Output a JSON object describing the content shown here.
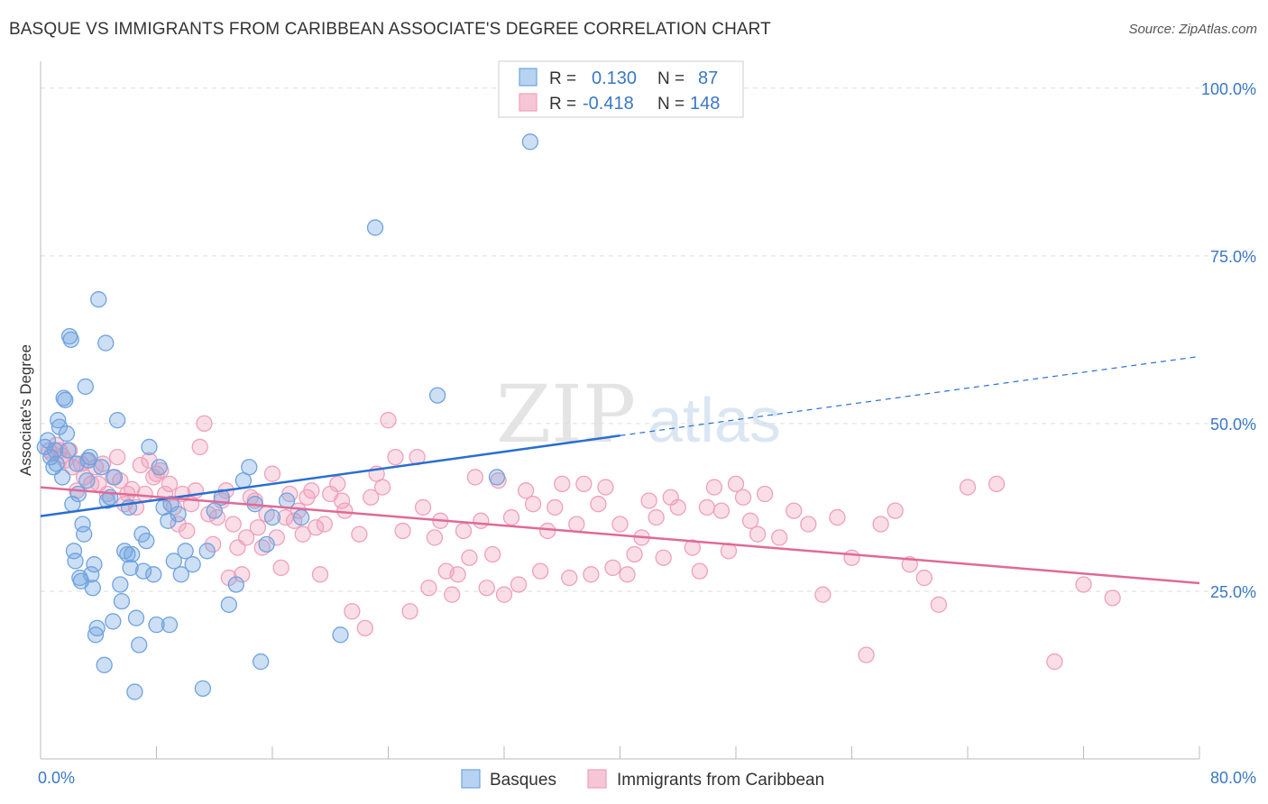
{
  "title": "BASQUE VS IMMIGRANTS FROM CARIBBEAN ASSOCIATE'S DEGREE CORRELATION CHART",
  "source": "Source: ZipAtlas.com",
  "watermark": {
    "zip": "ZIP",
    "atlas": "atlas"
  },
  "colors": {
    "blue": "#6fa3e0",
    "blue_line": "#2a6fcf",
    "pink": "#f0a0bb",
    "pink_line": "#e06a96",
    "axis_text": "#3a78c4",
    "grid": "#dddddd"
  },
  "legend": {
    "rows": [
      {
        "r_label": "R =",
        "r_value": "0.130",
        "n_label": "N =",
        "n_value": "87"
      },
      {
        "r_label": "R =",
        "r_value": "-0.418",
        "n_label": "N =",
        "n_value": "148"
      }
    ]
  },
  "chart_data": {
    "type": "scatter",
    "title": "BASQUE VS IMMIGRANTS FROM CARIBBEAN ASSOCIATE'S DEGREE CORRELATION CHART",
    "xlabel": "",
    "ylabel": "Associate's Degree",
    "xlim": [
      0,
      80
    ],
    "ylim": [
      0,
      104
    ],
    "x_tick_labels": [
      "0.0%",
      "80.0%"
    ],
    "y_ticks": [
      25,
      50,
      75,
      100
    ],
    "y_tick_labels": [
      "25.0%",
      "50.0%",
      "75.0%",
      "100.0%"
    ],
    "legend_position": "bottom-center",
    "series": [
      {
        "name": "Basques",
        "r": 0.13,
        "n": 87,
        "trend": {
          "x_start": 0,
          "y_start": 36.2,
          "x_solid_end": 40,
          "y_solid_end": 48.2,
          "x_end": 80,
          "y_end": 60
        },
        "points": [
          [
            0.3,
            46.5
          ],
          [
            0.5,
            47.5
          ],
          [
            0.7,
            45
          ],
          [
            0.9,
            43.5
          ],
          [
            1,
            46
          ],
          [
            1.1,
            44
          ],
          [
            1.2,
            50.5
          ],
          [
            1.3,
            49.5
          ],
          [
            1.5,
            42
          ],
          [
            1.6,
            53.8
          ],
          [
            1.7,
            53.5
          ],
          [
            1.8,
            48.5
          ],
          [
            1.9,
            46
          ],
          [
            2,
            63
          ],
          [
            2.1,
            62.5
          ],
          [
            2.2,
            38
          ],
          [
            2.3,
            31
          ],
          [
            2.4,
            29.5
          ],
          [
            2.5,
            44
          ],
          [
            2.6,
            39.5
          ],
          [
            2.7,
            27
          ],
          [
            2.8,
            26.5
          ],
          [
            2.9,
            35
          ],
          [
            3,
            33.5
          ],
          [
            3.1,
            55.5
          ],
          [
            3.2,
            41.5
          ],
          [
            3.3,
            44.5
          ],
          [
            3.4,
            45
          ],
          [
            3.5,
            27.5
          ],
          [
            3.6,
            25.5
          ],
          [
            3.7,
            29
          ],
          [
            3.8,
            18.5
          ],
          [
            3.9,
            19.5
          ],
          [
            4,
            68.5
          ],
          [
            4.2,
            43.5
          ],
          [
            4.4,
            14
          ],
          [
            4.5,
            62
          ],
          [
            4.6,
            38.5
          ],
          [
            4.8,
            39
          ],
          [
            5,
            20.5
          ],
          [
            5.1,
            42
          ],
          [
            5.3,
            50.5
          ],
          [
            5.5,
            26
          ],
          [
            5.6,
            23.5
          ],
          [
            5.8,
            31
          ],
          [
            6,
            30.5
          ],
          [
            6.1,
            37.5
          ],
          [
            6.2,
            28.5
          ],
          [
            6.3,
            30.5
          ],
          [
            6.5,
            10
          ],
          [
            6.6,
            21
          ],
          [
            6.8,
            17
          ],
          [
            7,
            33.5
          ],
          [
            7.1,
            28
          ],
          [
            7.3,
            32.5
          ],
          [
            7.5,
            46.5
          ],
          [
            7.8,
            27.5
          ],
          [
            8,
            20
          ],
          [
            8.2,
            43.5
          ],
          [
            8.5,
            37.5
          ],
          [
            8.8,
            35.5
          ],
          [
            8.9,
            20
          ],
          [
            9,
            38
          ],
          [
            9.2,
            29.5
          ],
          [
            9.5,
            36.5
          ],
          [
            9.7,
            27.5
          ],
          [
            10,
            31
          ],
          [
            10.5,
            29
          ],
          [
            11.2,
            10.5
          ],
          [
            11.5,
            31
          ],
          [
            12,
            37
          ],
          [
            12.5,
            39
          ],
          [
            13,
            23
          ],
          [
            13.5,
            26
          ],
          [
            14,
            41.5
          ],
          [
            14.4,
            43.5
          ],
          [
            14.8,
            38
          ],
          [
            15.2,
            14.5
          ],
          [
            15.6,
            32
          ],
          [
            16,
            36
          ],
          [
            20.7,
            18.5
          ],
          [
            23.1,
            79.2
          ],
          [
            27.4,
            54.2
          ],
          [
            31.5,
            42
          ],
          [
            33.8,
            92
          ],
          [
            17,
            38.5
          ],
          [
            18,
            36
          ]
        ]
      },
      {
        "name": "Immigrants from Caribbean",
        "r": -0.418,
        "n": 148,
        "trend": {
          "x_start": 0,
          "y_start": 40.5,
          "x_end": 80,
          "y_end": 26.2
        },
        "points": [
          [
            0.6,
            46
          ],
          [
            0.8,
            45.5
          ],
          [
            1.1,
            46.8
          ],
          [
            1.3,
            46
          ],
          [
            1.5,
            45.2
          ],
          [
            1.7,
            44.5
          ],
          [
            2,
            46
          ],
          [
            2.2,
            43.5
          ],
          [
            2.5,
            40
          ],
          [
            2.8,
            44
          ],
          [
            3,
            42
          ],
          [
            3.2,
            44.5
          ],
          [
            3.5,
            41
          ],
          [
            3.8,
            43.5
          ],
          [
            4,
            41
          ],
          [
            4.3,
            44
          ],
          [
            4.6,
            39.5
          ],
          [
            5,
            42
          ],
          [
            5.3,
            45
          ],
          [
            5.5,
            41.5
          ],
          [
            5.8,
            38
          ],
          [
            6,
            39.5
          ],
          [
            6.3,
            40.2
          ],
          [
            6.6,
            37.5
          ],
          [
            6.9,
            43.8
          ],
          [
            7.2,
            39.5
          ],
          [
            7.5,
            44.5
          ],
          [
            7.8,
            42
          ],
          [
            8,
            42.5
          ],
          [
            8.3,
            43
          ],
          [
            8.6,
            39.5
          ],
          [
            8.9,
            41
          ],
          [
            9.2,
            37.5
          ],
          [
            9.5,
            35
          ],
          [
            9.8,
            39.5
          ],
          [
            10.1,
            34
          ],
          [
            10.4,
            38
          ],
          [
            10.7,
            40
          ],
          [
            11,
            46.5
          ],
          [
            11.3,
            50
          ],
          [
            11.6,
            36.5
          ],
          [
            11.9,
            32
          ],
          [
            12.2,
            36
          ],
          [
            12.5,
            38.5
          ],
          [
            12.8,
            40
          ],
          [
            13,
            27
          ],
          [
            13.3,
            35
          ],
          [
            13.6,
            31.5
          ],
          [
            13.9,
            27.5
          ],
          [
            14.2,
            33
          ],
          [
            14.5,
            39
          ],
          [
            14.8,
            38.5
          ],
          [
            15,
            34.5
          ],
          [
            15.3,
            31.5
          ],
          [
            15.6,
            36.5
          ],
          [
            16,
            42.5
          ],
          [
            16.3,
            33
          ],
          [
            16.6,
            28.5
          ],
          [
            16.9,
            36
          ],
          [
            17.2,
            39.5
          ],
          [
            17.5,
            35.5
          ],
          [
            17.8,
            37
          ],
          [
            18.1,
            33.5
          ],
          [
            18.4,
            39
          ],
          [
            18.7,
            40
          ],
          [
            19,
            34.5
          ],
          [
            19.3,
            27.5
          ],
          [
            19.6,
            35
          ],
          [
            20,
            39.5
          ],
          [
            20.5,
            41
          ],
          [
            20.8,
            38.5
          ],
          [
            21,
            37
          ],
          [
            21.5,
            22
          ],
          [
            22,
            33.5
          ],
          [
            22.4,
            19.5
          ],
          [
            22.8,
            39
          ],
          [
            23.2,
            42.5
          ],
          [
            23.6,
            40.5
          ],
          [
            24,
            50.5
          ],
          [
            24.5,
            45
          ],
          [
            25,
            34
          ],
          [
            25.5,
            22
          ],
          [
            26,
            45
          ],
          [
            26.4,
            37.5
          ],
          [
            26.8,
            25.5
          ],
          [
            27.2,
            33
          ],
          [
            27.6,
            35.5
          ],
          [
            28,
            28
          ],
          [
            28.4,
            24.5
          ],
          [
            28.8,
            27.5
          ],
          [
            29.2,
            34
          ],
          [
            29.6,
            30
          ],
          [
            30,
            42
          ],
          [
            30.4,
            35.5
          ],
          [
            30.8,
            25.5
          ],
          [
            31.2,
            30.5
          ],
          [
            31.6,
            41.5
          ],
          [
            32,
            24.5
          ],
          [
            32.5,
            36
          ],
          [
            33,
            26
          ],
          [
            33.5,
            40
          ],
          [
            34,
            38
          ],
          [
            34.5,
            28
          ],
          [
            35,
            34
          ],
          [
            35.5,
            37.5
          ],
          [
            36,
            41
          ],
          [
            36.5,
            27
          ],
          [
            37,
            35
          ],
          [
            37.5,
            41
          ],
          [
            38,
            27.5
          ],
          [
            38.5,
            38
          ],
          [
            39,
            40.5
          ],
          [
            39.5,
            28.5
          ],
          [
            40,
            35
          ],
          [
            40.5,
            27.5
          ],
          [
            41,
            30.5
          ],
          [
            41.5,
            33
          ],
          [
            42,
            38.5
          ],
          [
            42.5,
            36
          ],
          [
            43,
            30
          ],
          [
            43.5,
            39
          ],
          [
            44,
            37.5
          ],
          [
            45,
            31.5
          ],
          [
            45.5,
            28
          ],
          [
            46,
            37.5
          ],
          [
            46.5,
            40.5
          ],
          [
            47,
            37
          ],
          [
            47.5,
            31
          ],
          [
            48,
            41
          ],
          [
            48.5,
            39
          ],
          [
            49,
            35.5
          ],
          [
            49.5,
            33.5
          ],
          [
            50,
            39.5
          ],
          [
            51,
            33
          ],
          [
            52,
            37
          ],
          [
            53,
            35
          ],
          [
            54,
            24.5
          ],
          [
            55,
            36
          ],
          [
            56,
            30
          ],
          [
            57,
            15.5
          ],
          [
            58,
            35
          ],
          [
            59,
            37
          ],
          [
            60,
            29
          ],
          [
            61,
            27
          ],
          [
            62,
            23
          ],
          [
            64,
            40.5
          ],
          [
            66,
            41
          ],
          [
            70,
            14.5
          ],
          [
            72,
            26
          ],
          [
            74,
            24
          ]
        ]
      }
    ]
  },
  "bottom_legend": {
    "items": [
      "Basques",
      "Immigrants from Caribbean"
    ]
  }
}
